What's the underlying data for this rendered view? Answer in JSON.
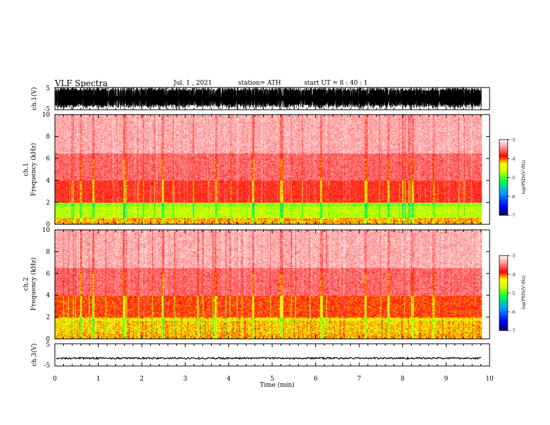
{
  "header": {
    "title": "VLF Spectra",
    "date": "Jul. 1 , 2021",
    "station": "station= ATH",
    "start": "start UT = 8 : 40 : 1"
  },
  "colors": {
    "background": "#ffffff",
    "axis": "#000000",
    "colormap": [
      "#000080",
      "#0000ff",
      "#00a0ff",
      "#00ff40",
      "#c0ff00",
      "#ffff00",
      "#ff0000",
      "#ffffff"
    ]
  },
  "chart_data": [
    {
      "type": "line",
      "panel": "ch1-waveform",
      "ylabel": "ch.1(V)",
      "ylim": [
        -5,
        5
      ],
      "yticks": [
        "5",
        "-5"
      ],
      "xlim": [
        0,
        10
      ],
      "series": [
        {
          "values_description_free": true,
          "x": [
            0,
            9.82
          ],
          "y": [
            -5,
            5
          ]
        }
      ]
    },
    {
      "type": "heatmap",
      "panel": "ch1-spectrogram",
      "ylabel": "ch.1 Frequency (kHz)",
      "ylim": [
        0,
        10
      ],
      "yticks": [
        "0",
        "2",
        "4",
        "6",
        "8",
        "10"
      ],
      "xlim": [
        0,
        10
      ],
      "colorbar": {
        "label": "log(PSD)(V²/Hz)",
        "ticks": [
          "-3",
          "-4",
          "-5",
          "-6",
          "-7"
        ],
        "range": [
          -7,
          -3
        ]
      }
    },
    {
      "type": "heatmap",
      "panel": "ch2-spectrogram",
      "ylabel": "ch.2 Frequency (kHz)",
      "ylim": [
        0,
        10
      ],
      "yticks": [
        "0",
        "2",
        "4",
        "6",
        "8",
        "10"
      ],
      "xlim": [
        0,
        10
      ],
      "colorbar": {
        "label": "log(PSD)(V²/Hz)",
        "ticks": [
          "-3",
          "-4",
          "-5",
          "-6",
          "-7"
        ],
        "range": [
          -7,
          -3
        ]
      }
    },
    {
      "type": "line",
      "panel": "ch3-waveform",
      "ylabel": "ch.3(V)",
      "ylim": [
        -5,
        5
      ],
      "yticks": [
        "5",
        "-5"
      ],
      "xlim": [
        0,
        10
      ],
      "xlabel": "Time (min)",
      "xticks": [
        "0",
        "1",
        "2",
        "3",
        "4",
        "5",
        "6",
        "7",
        "8",
        "9",
        "10"
      ],
      "series": [
        {
          "x": [
            0,
            9.82
          ],
          "y": [
            -1.5,
            -1.5
          ]
        }
      ]
    }
  ]
}
